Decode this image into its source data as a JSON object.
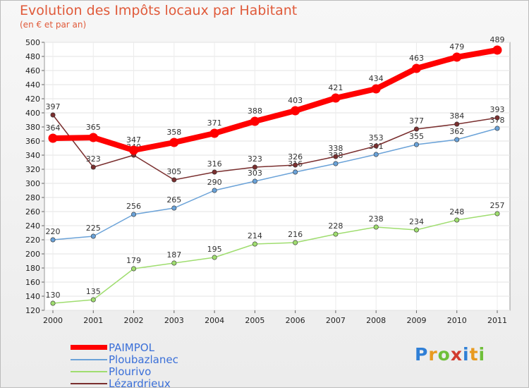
{
  "chart_data": {
    "type": "line",
    "title": "Evolution des Impôts locaux par Habitant",
    "subtitle": "(en € et par an)",
    "categories": [
      "2000",
      "2001",
      "2002",
      "2003",
      "2004",
      "2005",
      "2006",
      "2007",
      "2008",
      "2009",
      "2010",
      "2011"
    ],
    "ylim": [
      120,
      500
    ],
    "yticks": [
      120,
      140,
      160,
      180,
      200,
      220,
      240,
      260,
      280,
      300,
      320,
      340,
      360,
      380,
      400,
      420,
      440,
      460,
      480,
      500
    ],
    "grid": true,
    "legend_position": "bottom-left",
    "series": [
      {
        "name": "PAIMPOL",
        "color": "#ff0000",
        "values": [
          364,
          365,
          347,
          358,
          371,
          388,
          403,
          421,
          434,
          463,
          479,
          489
        ]
      },
      {
        "name": "Ploubazlanec",
        "color": "#6aa2d8",
        "values": [
          220,
          225,
          256,
          265,
          290,
          303,
          316,
          328,
          341,
          355,
          362,
          378
        ]
      },
      {
        "name": "Plourivo",
        "color": "#9fdd6f",
        "values": [
          130,
          135,
          179,
          187,
          195,
          214,
          216,
          228,
          238,
          234,
          248,
          257
        ]
      },
      {
        "name": "Lézardrieux",
        "color": "#7a2f2f",
        "values": [
          397,
          323,
          340,
          305,
          316,
          323,
          326,
          338,
          353,
          377,
          384,
          393
        ]
      }
    ]
  },
  "logo_text": "Proxiti"
}
